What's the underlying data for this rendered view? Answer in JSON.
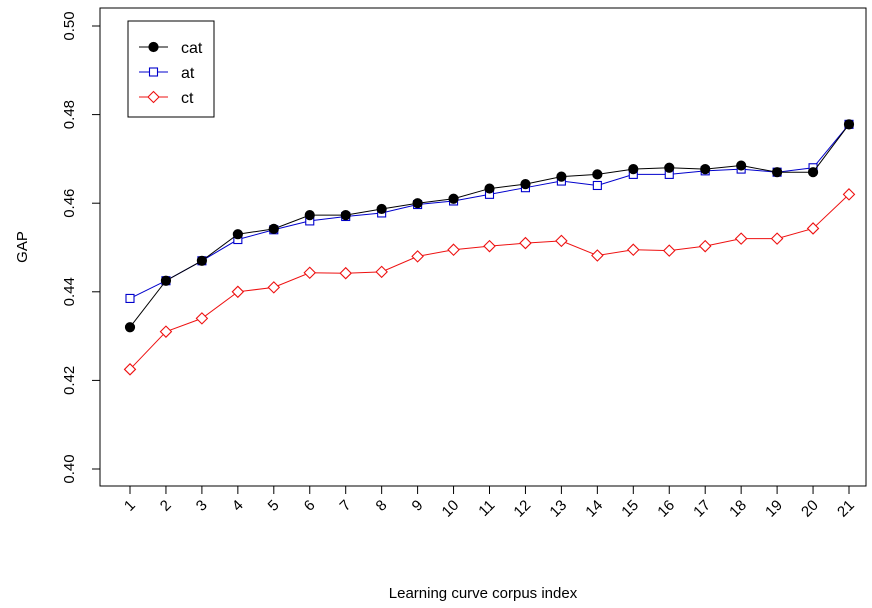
{
  "chart_data": {
    "type": "line",
    "title": "",
    "xlabel": "Learning curve corpus index",
    "ylabel": "GAP",
    "categories": [
      "1",
      "2",
      "3",
      "4",
      "5",
      "6",
      "7",
      "8",
      "9",
      "10",
      "11",
      "12",
      "13",
      "14",
      "15",
      "16",
      "17",
      "18",
      "19",
      "20",
      "21"
    ],
    "ylim": [
      0.397,
      0.5
    ],
    "yticks": [
      0.4,
      0.42,
      0.44,
      0.46,
      0.48,
      0.5
    ],
    "ytick_labels": [
      "0.40",
      "0.42",
      "0.44",
      "0.46",
      "0.48",
      "0.50"
    ],
    "grid": false,
    "legend_position": "top-left",
    "series": [
      {
        "name": "cat",
        "color": "#000000",
        "marker": "filled-circle",
        "values": [
          0.432,
          0.4425,
          0.447,
          0.453,
          0.4542,
          0.4573,
          0.4573,
          0.4587,
          0.46,
          0.461,
          0.4633,
          0.4643,
          0.466,
          0.4665,
          0.4677,
          0.468,
          0.4677,
          0.4685,
          0.467,
          0.467,
          0.4778
        ]
      },
      {
        "name": "at",
        "color": "#0000cc",
        "marker": "open-square",
        "values": [
          0.4385,
          0.4425,
          0.447,
          0.4518,
          0.454,
          0.456,
          0.457,
          0.4578,
          0.4597,
          0.4605,
          0.462,
          0.4635,
          0.465,
          0.464,
          0.4665,
          0.4665,
          0.4673,
          0.4677,
          0.467,
          0.468,
          0.4778
        ]
      },
      {
        "name": "ct",
        "color": "#ee1111",
        "marker": "open-diamond",
        "values": [
          0.4225,
          0.431,
          0.434,
          0.44,
          0.441,
          0.4443,
          0.4442,
          0.4445,
          0.448,
          0.4495,
          0.4503,
          0.451,
          0.4515,
          0.4482,
          0.4495,
          0.4493,
          0.4503,
          0.452,
          0.452,
          0.4543,
          0.462
        ]
      }
    ]
  }
}
